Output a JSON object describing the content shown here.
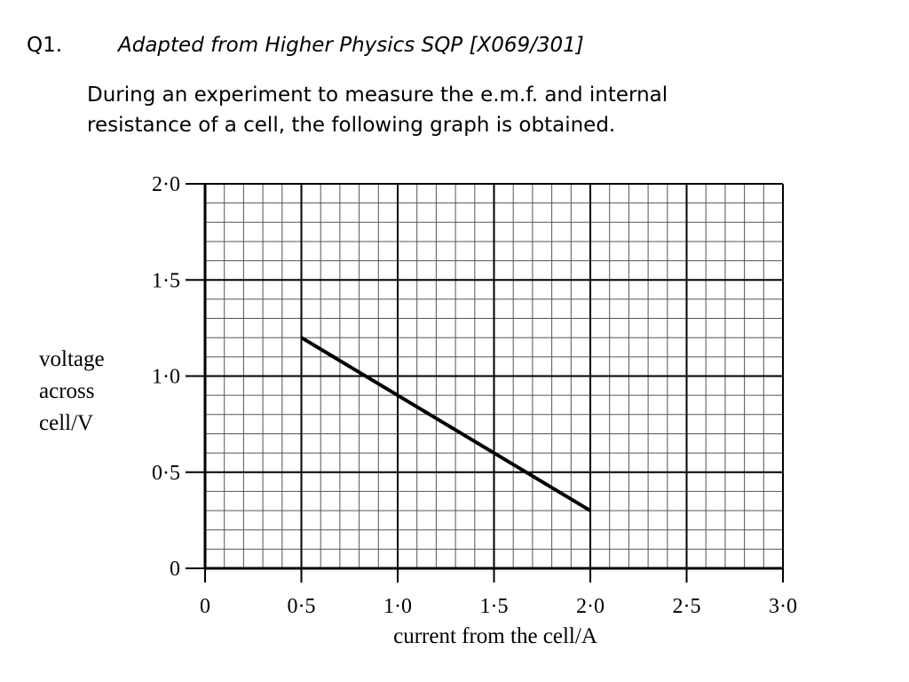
{
  "question": {
    "number": "Q1.",
    "source": "Adapted from Higher Physics SQP [X069/301]",
    "text_lines": [
      "During an experiment to measure the e.m.f. and internal",
      "resistance of a cell, the following graph is obtained."
    ]
  },
  "chart_data": {
    "type": "line",
    "xlabel": "current from the cell/A",
    "ylabel_lines": [
      "voltage",
      "across",
      "cell/V"
    ],
    "xlim": [
      0,
      3.0
    ],
    "ylim": [
      0,
      2.0
    ],
    "x_ticks": [
      0,
      0.5,
      1.0,
      1.5,
      2.0,
      2.5,
      3.0
    ],
    "x_tick_labels": [
      "0",
      "0·5",
      "1·0",
      "1·5",
      "2·0",
      "2·5",
      "3·0"
    ],
    "y_ticks": [
      0,
      0.5,
      1.0,
      1.5,
      2.0
    ],
    "y_tick_labels": [
      "0",
      "0·5",
      "1·0",
      "1·5",
      "2·0"
    ],
    "grid": true,
    "minor_divisions": 5,
    "series": [
      {
        "x": [
          0.5,
          2.0
        ],
        "y": [
          1.2,
          0.3
        ]
      }
    ]
  }
}
